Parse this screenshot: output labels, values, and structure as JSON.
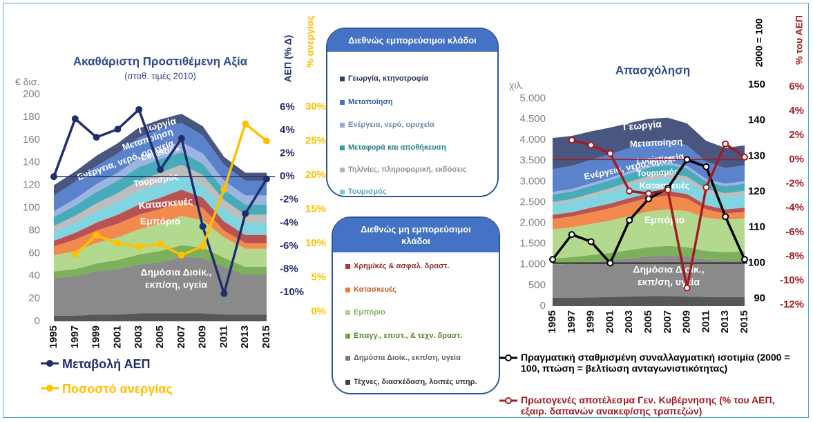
{
  "legend_groups": [
    "Διεθνώς εμπορεύσιμοι κλάδοι",
    "Διεθνώς μη εμπορεύσιμοι κλάδοι"
  ],
  "chart_data": [
    {
      "type": "area",
      "title": "Ακαθάριστη Προστιθέμενη Αξία",
      "subtitle": "(σταθ. τιμές 2010)",
      "y_label": "€ δισ.",
      "y2_label": "ΑΕΠ (% Δ)",
      "y3_label": "% ανεργίας",
      "x": [
        1995,
        1997,
        1999,
        2001,
        2003,
        2005,
        2007,
        2009,
        2011,
        2013,
        2015
      ],
      "xlim": [
        1995,
        2015
      ],
      "ylim": [
        0,
        200
      ],
      "yticks": [
        0,
        20,
        40,
        60,
        80,
        100,
        120,
        140,
        160,
        180,
        200
      ],
      "y2lim": [
        -12.5,
        7.1
      ],
      "y2ticks": [
        {
          "value": 6,
          "label": "6%"
        },
        {
          "value": 4,
          "label": "4%"
        },
        {
          "value": 2,
          "label": "2%"
        },
        {
          "value": 0,
          "label": "0%"
        },
        {
          "value": -2,
          "label": "-2%"
        },
        {
          "value": -4,
          "label": "-4%"
        },
        {
          "value": -6,
          "label": "-6%"
        },
        {
          "value": -8,
          "label": "-8%"
        },
        {
          "value": -10,
          "label": "-10%"
        }
      ],
      "y3lim": [
        -1.4,
        31.8
      ],
      "y3ticks": [
        {
          "value": 0,
          "label": "0%"
        },
        {
          "value": 5,
          "label": "5%"
        },
        {
          "value": 10,
          "label": "10%"
        },
        {
          "value": 15,
          "label": "15%"
        },
        {
          "value": 20,
          "label": "20%"
        },
        {
          "value": 25,
          "label": "25%"
        },
        {
          "value": 30,
          "label": "30%"
        }
      ],
      "series": [
        {
          "name": "Γεωργία, κτηνοτροφία",
          "color": "#2f3f6e",
          "values": [
            9,
            9,
            9,
            9,
            9,
            8,
            8,
            8,
            7,
            7,
            7
          ]
        },
        {
          "name": "Μεταποίηση",
          "color": "#4472c4",
          "values": [
            14,
            15,
            16,
            17,
            18,
            18,
            17,
            16,
            14,
            13,
            13
          ]
        },
        {
          "name": "Ενέργεια, νερό, ορυχεία",
          "color": "#8faadc",
          "values": [
            5,
            6,
            7,
            7,
            8,
            9,
            9,
            9,
            8,
            8,
            8
          ]
        },
        {
          "name": "Μεταφορά και αποθήκευση",
          "color": "#2e9fb0",
          "values": [
            8,
            9,
            10,
            11,
            12,
            12,
            11,
            10,
            9,
            9,
            9
          ]
        },
        {
          "name": "Τηλ/νίες, πληροφορική, εκδόσεις",
          "color": "#b4b4b4",
          "values": [
            5,
            6,
            7,
            8,
            9,
            10,
            10,
            9,
            8,
            7,
            7
          ]
        },
        {
          "name": "Τουρισμός",
          "color": "#6fcfdc",
          "values": [
            8,
            9,
            10,
            11,
            12,
            12,
            12,
            11,
            11,
            11,
            11
          ]
        },
        {
          "name": "Χρημ/κές & ασφαλ. δραστ.",
          "color": "#b03a3a",
          "values": [
            5,
            6,
            7,
            8,
            9,
            10,
            10,
            9,
            8,
            7,
            7
          ]
        },
        {
          "name": "Κατασκευές",
          "color": "#f07a35",
          "values": [
            8,
            10,
            11,
            12,
            13,
            13,
            13,
            11,
            6,
            5,
            5
          ]
        },
        {
          "name": "Εμπόριο",
          "color": "#a9d47f",
          "values": [
            14,
            16,
            18,
            20,
            22,
            24,
            26,
            24,
            18,
            16,
            16
          ]
        },
        {
          "name": "Επαγγ., επιστ., & τεχν. δραστ.",
          "color": "#6aa543",
          "values": [
            6,
            6,
            7,
            8,
            9,
            10,
            10,
            9,
            8,
            7,
            7
          ]
        },
        {
          "name": "Δημόσια Διοίκ., εκπ/ση, υγεία",
          "color": "#7a7a7a",
          "values": [
            33,
            35,
            38,
            40,
            43,
            45,
            50,
            49,
            42,
            35,
            35
          ]
        },
        {
          "name": "Τέχνες, διασκέδαση, λοιπές υπηρ.",
          "color": "#404040",
          "values": [
            5,
            5,
            6,
            6,
            7,
            7,
            7,
            7,
            6,
            6,
            6
          ]
        }
      ],
      "lines": [
        {
          "name": "Μεταβολή ΑΕΠ",
          "color": "#1f2f6b",
          "axis": "y2",
          "values": [
            0,
            5,
            3.4,
            4.1,
            5.8,
            0.6,
            3.3,
            -4.3,
            -10.1,
            -3.2,
            -0.2
          ]
        },
        {
          "name": "Ποσοστό ανεργίας",
          "color": "#ffc000",
          "axis": "y3",
          "values": [
            null,
            8.4,
            11.2,
            10.0,
            9.5,
            9.9,
            8.3,
            9.6,
            17.9,
            27.5,
            25.0
          ]
        }
      ],
      "annotations": [
        "Γεωργία",
        "Μεταποίηση",
        "Ενέργεια, νερό, ορυχεία",
        "Logistics",
        "Τουρισμός",
        "Κατασκευές",
        "Εμπόριο",
        "Δημόσια Διοίκ.,",
        "εκπ/ση, υγεία"
      ]
    },
    {
      "type": "area",
      "title": "Απασχόληση",
      "y_label": "χιλ.",
      "y2_label": "2000 = 100",
      "y3_label": "% του ΑΕΠ",
      "x": [
        1995,
        1997,
        1999,
        2001,
        2003,
        2005,
        2007,
        2009,
        2011,
        2013,
        2015
      ],
      "xlim": [
        1995,
        2015
      ],
      "ylim": [
        0,
        5330
      ],
      "yticks": [
        0,
        500,
        {
          "value": 1000,
          "label": "1.000"
        },
        {
          "value": 1500,
          "label": "1.500"
        },
        {
          "value": 2000,
          "label": "2.000"
        },
        {
          "value": 2500,
          "label": "2.500"
        },
        {
          "value": 3000,
          "label": "3.000"
        },
        {
          "value": 3500,
          "label": "3.500"
        },
        {
          "value": 4000,
          "label": "4.000"
        },
        {
          "value": 4500,
          "label": "4.500"
        },
        {
          "value": 5000,
          "label": "5.000"
        }
      ],
      "y2lim": [
        87.9,
        150
      ],
      "y2ticks": [
        150,
        140,
        130,
        120,
        110,
        100,
        90
      ],
      "y3lim": [
        -12.1,
        6.17
      ],
      "y3ticks": [
        {
          "value": 6,
          "label": "6%"
        },
        {
          "value": 4,
          "label": "4%"
        },
        {
          "value": 2,
          "label": "2%"
        },
        {
          "value": 0,
          "label": "0%"
        },
        {
          "value": -2,
          "label": "-2%"
        },
        {
          "value": -4,
          "label": "-4%"
        },
        {
          "value": -6,
          "label": "-6%"
        },
        {
          "value": -8,
          "label": "-8%"
        },
        {
          "value": -10,
          "label": "-10%"
        },
        {
          "value": -12,
          "label": "-12%"
        }
      ],
      "series": [
        {
          "color": "#2f3f6e",
          "values": [
            750,
            720,
            680,
            640,
            600,
            560,
            540,
            520,
            500,
            480,
            480
          ]
        },
        {
          "color": "#4472c4",
          "values": [
            550,
            560,
            570,
            570,
            560,
            550,
            540,
            500,
            420,
            380,
            380
          ]
        },
        {
          "color": "#8faadc",
          "values": [
            60,
            60,
            60,
            60,
            60,
            60,
            60,
            60,
            60,
            60,
            60
          ]
        },
        {
          "color": "#2e9fb0",
          "values": [
            180,
            180,
            190,
            190,
            200,
            200,
            200,
            200,
            180,
            170,
            170
          ]
        },
        {
          "color": "#b4b4b4",
          "values": [
            60,
            60,
            70,
            80,
            90,
            100,
            100,
            100,
            90,
            90,
            90
          ]
        },
        {
          "color": "#6fcfdc",
          "values": [
            250,
            260,
            270,
            290,
            300,
            320,
            330,
            320,
            300,
            300,
            320
          ]
        },
        {
          "color": "#b03a3a",
          "values": [
            100,
            100,
            110,
            110,
            110,
            110,
            110,
            110,
            100,
            100,
            100
          ]
        },
        {
          "color": "#f07a35",
          "values": [
            250,
            260,
            280,
            300,
            320,
            330,
            330,
            300,
            200,
            150,
            150
          ]
        },
        {
          "color": "#a9d47f",
          "values": [
            700,
            720,
            750,
            780,
            820,
            860,
            880,
            870,
            800,
            780,
            800
          ]
        },
        {
          "color": "#6aa543",
          "values": [
            150,
            160,
            170,
            180,
            200,
            220,
            230,
            230,
            210,
            200,
            210
          ]
        },
        {
          "color": "#7a7a7a",
          "values": [
            800,
            820,
            850,
            880,
            920,
            960,
            980,
            960,
            900,
            880,
            890
          ]
        },
        {
          "color": "#404040",
          "values": [
            200,
            200,
            210,
            220,
            230,
            240,
            240,
            230,
            220,
            220,
            220
          ]
        }
      ],
      "lines": [
        {
          "name": "Πραγματική σταθμισμένη συναλλαγματική ισοτιμία (2000 = 100, πτώση = βελτίωση ανταγωνιστικότητας)",
          "color": "#000000",
          "axis": "y2",
          "values": [
            101,
            108,
            106,
            100,
            112,
            118,
            121,
            129,
            127,
            113,
            101
          ]
        },
        {
          "name": "Πρωτογενές αποτέλεσμα Γεν. Κυβέρνησης (% του ΑΕΠ, εξαιρ. δαπανών ανακεφ/σης τραπεζών)",
          "color": "#a01c22",
          "axis": "y3",
          "values": [
            null,
            1.6,
            1.2,
            0.5,
            -2.6,
            -2.8,
            -2.5,
            -10.6,
            -2.3,
            1.3,
            0.2
          ]
        }
      ],
      "annotations": [
        "Γεωργία",
        "Μεταποίηση",
        "Ενέργεια, νερό, ορυχεία",
        "Logistics",
        "Τουρισμός",
        "Κατασκευές",
        "Εμπόριο",
        "Δημόσια Διοίκ.,",
        "εκπ/ση, υγεία"
      ]
    }
  ]
}
